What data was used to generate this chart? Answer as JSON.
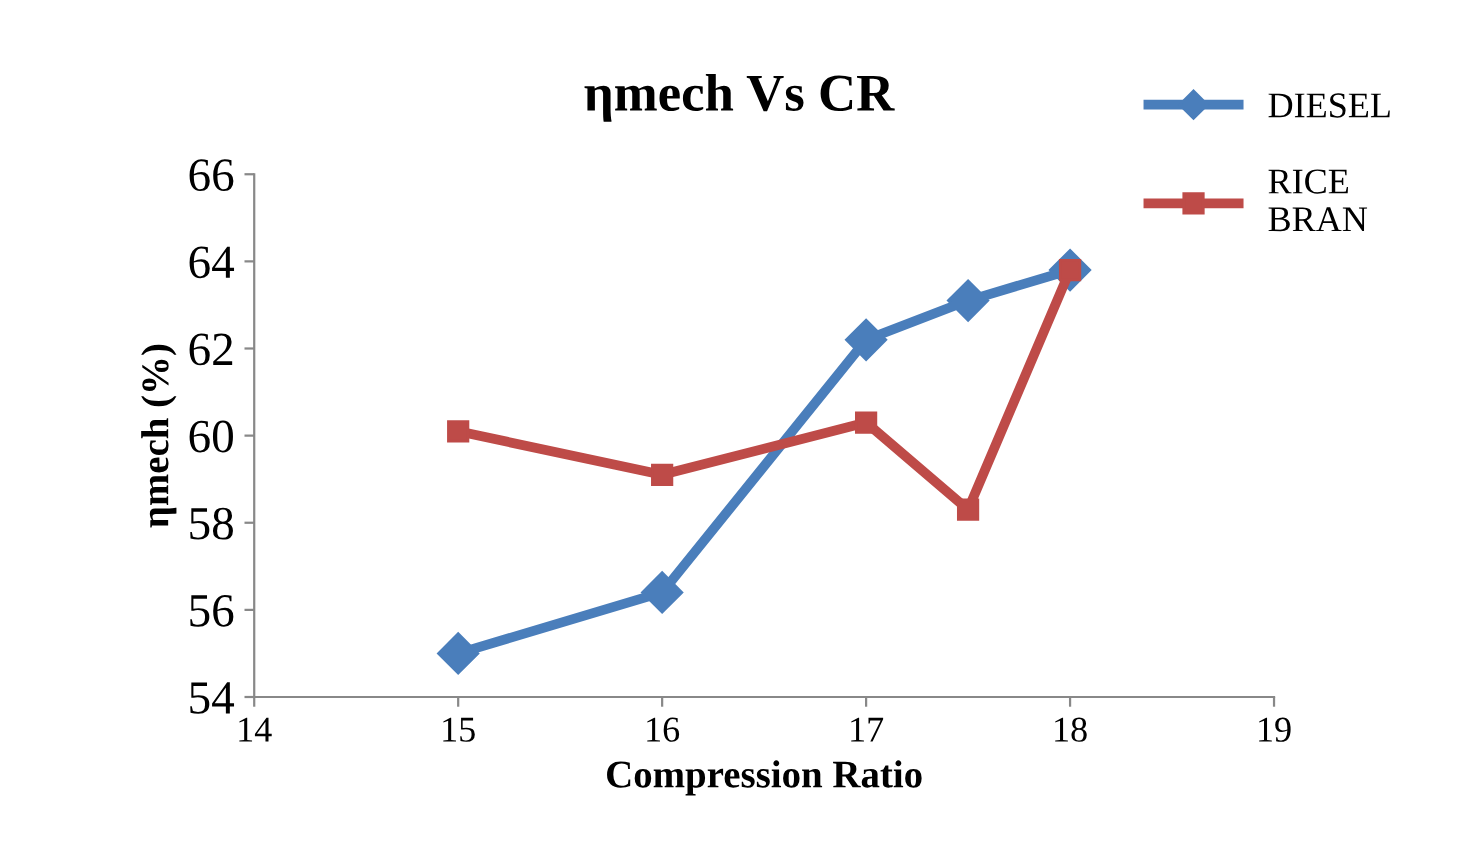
{
  "chart_data": {
    "type": "line",
    "title": "ηmech Vs CR",
    "xlabel": "Compression Ratio",
    "ylabel": "ηmech (%)",
    "x": [
      15,
      16,
      17,
      17.5,
      18
    ],
    "series": [
      {
        "name": "DIESEL",
        "color": "#4a7ebb",
        "marker": "diamond",
        "values": [
          55.0,
          56.4,
          62.2,
          63.1,
          63.8
        ]
      },
      {
        "name": "RICE BRAN",
        "color": "#be4b48",
        "marker": "square",
        "values": [
          60.1,
          59.1,
          60.3,
          58.3,
          63.8
        ]
      }
    ],
    "xlim": [
      14,
      19
    ],
    "xticks": [
      14,
      15,
      16,
      17,
      18,
      19
    ],
    "ylim": [
      54,
      66
    ],
    "yticks": [
      54,
      56,
      58,
      60,
      62,
      64,
      66
    ],
    "grid": false,
    "legend": "right",
    "line_style": "solid"
  }
}
